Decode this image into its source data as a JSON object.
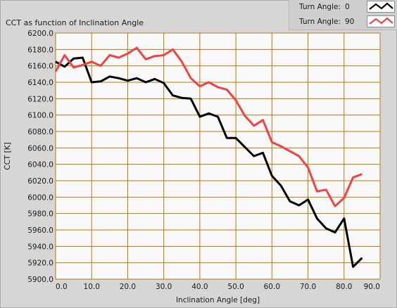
{
  "chart_data": {
    "type": "line",
    "title": "CCT as function of Inclination Angle",
    "xlabel": "Inclination Angle [deg]",
    "ylabel": "CCT [K]",
    "xlim": [
      0.0,
      90.0
    ],
    "ylim": [
      5900.0,
      6200.0
    ],
    "x_ticks": [
      "0.0",
      "10.0",
      "20.0",
      "30.0",
      "40.0",
      "50.0",
      "60.0",
      "70.0",
      "80.0",
      "90.0"
    ],
    "y_ticks": [
      "5900.0",
      "5920.0",
      "5940.0",
      "5960.0",
      "5980.0",
      "6000.0",
      "6020.0",
      "6040.0",
      "6060.0",
      "6080.0",
      "6100.0",
      "6120.0",
      "6140.0",
      "6160.0",
      "6180.0",
      "6200.0"
    ],
    "grid": true,
    "legend_position": "top-right",
    "series": [
      {
        "name": "Turn Angle:",
        "value_label": "0",
        "color": "#000000",
        "x": [
          0,
          2.5,
          5,
          7.5,
          10,
          12.5,
          15,
          17.5,
          20,
          22.5,
          25,
          27.5,
          30,
          32.5,
          35,
          37.5,
          40,
          42.5,
          45,
          47.5,
          50,
          52.5,
          55,
          57.5,
          60,
          62.5,
          65,
          67.5,
          70,
          72.5,
          75,
          77.5,
          80,
          82.5,
          85
        ],
        "y": [
          6165,
          6159,
          6169,
          6170,
          6140,
          6141,
          6147,
          6145,
          6142,
          6145,
          6140,
          6144,
          6139,
          6124,
          6121,
          6120,
          6098,
          6102,
          6098,
          6072,
          6072,
          6061,
          6050,
          6054,
          6026,
          6014,
          5995,
          5990,
          5997,
          5974,
          5962,
          5957,
          5974,
          5915,
          5926
        ]
      },
      {
        "name": "Turn Angle:",
        "value_label": "90",
        "color": "#ee4444",
        "x": [
          0,
          2.5,
          5,
          7.5,
          10,
          12.5,
          15,
          17.5,
          20,
          22.5,
          25,
          27.5,
          30,
          32.5,
          35,
          37.5,
          40,
          42.5,
          45,
          47.5,
          50,
          52.5,
          55,
          57.5,
          60,
          62.5,
          65,
          67.5,
          70,
          72.5,
          75,
          77.5,
          80,
          82.5,
          85
        ],
        "y": [
          6153,
          6173,
          6158,
          6161,
          6165,
          6160,
          6173,
          6170,
          6175,
          6182,
          6168,
          6172,
          6173,
          6180,
          6165,
          6145,
          6135,
          6140,
          6134,
          6131,
          6118,
          6099,
          6087,
          6094,
          6067,
          6062,
          6056,
          6050,
          6036,
          6007,
          6009,
          5989,
          5999,
          6024,
          6028
        ]
      }
    ]
  },
  "colors": {
    "plot_background": "#f8f8f8",
    "grid": "#b07c11",
    "panel": "#d6d6d6"
  }
}
